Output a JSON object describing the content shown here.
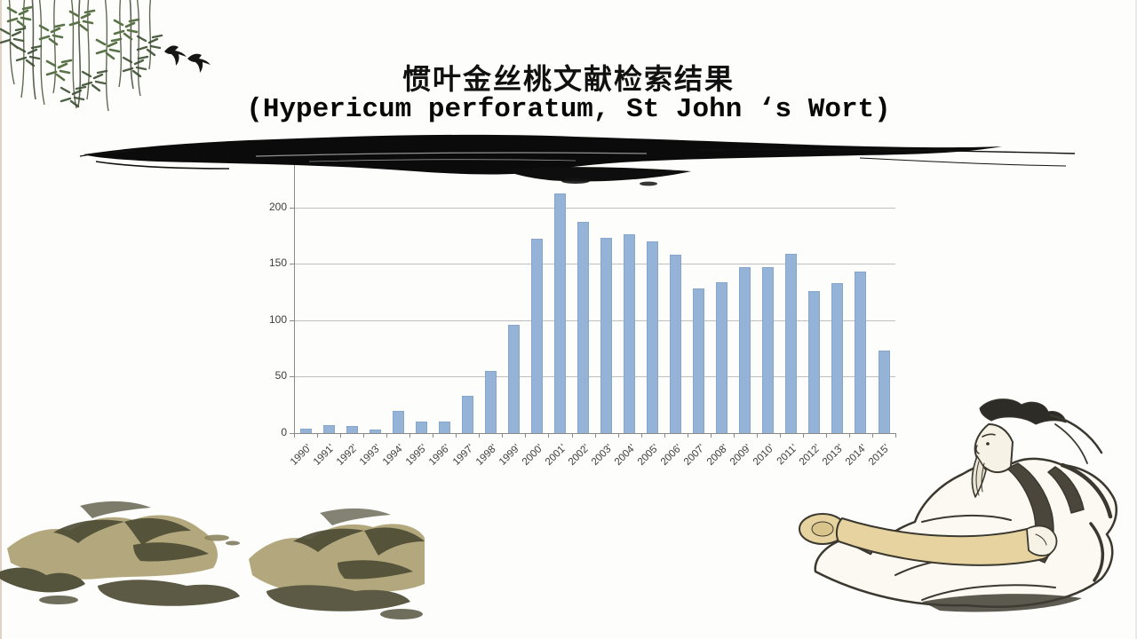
{
  "slide": {
    "title_cn": "惯叶金丝桃文献检索结果",
    "title_en": "(Hypericum perforatum, St John ‘s Wort)"
  },
  "chart_data": {
    "type": "bar",
    "title": "",
    "xlabel": "",
    "ylabel": "",
    "categories": [
      "1990'",
      "1991'",
      "1992'",
      "1993'",
      "1994'",
      "1995'",
      "1996'",
      "1997'",
      "1998'",
      "1999'",
      "2000'",
      "2001'",
      "2002'",
      "2003'",
      "2004'",
      "2005'",
      "2006'",
      "2007'",
      "2008'",
      "2009'",
      "2010'",
      "2011'",
      "2012'",
      "2013'",
      "2014'",
      "2015'"
    ],
    "values": [
      4,
      7,
      6,
      3,
      20,
      10,
      10,
      33,
      55,
      96,
      172,
      212,
      187,
      173,
      176,
      170,
      158,
      128,
      134,
      147,
      147,
      159,
      126,
      133,
      143,
      73
    ],
    "ylim": [
      0,
      250
    ],
    "yticks": [
      0,
      50,
      100,
      150,
      200
    ],
    "grid": true,
    "legend": null,
    "bar_color": "#95b3d7",
    "gridline_color": "#bfbfbf",
    "axis_color": "#8a8a8a",
    "tick_label_color": "#3c3c3c"
  },
  "decor": {
    "willow": "willow-branches-ink-painting",
    "swallows": "flying-swallows",
    "brush": "horizontal-ink-brush-stroke",
    "mountains": "ink-wash-mountains",
    "sage": "seated-sage-reading-scroll"
  }
}
